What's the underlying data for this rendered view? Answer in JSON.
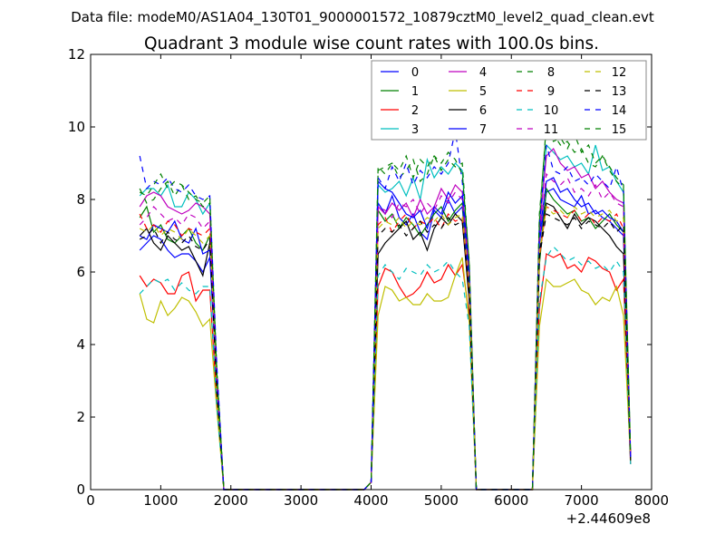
{
  "chart_data": {
    "type": "line",
    "suptitle": "Data file: modeM0/AS1A04_130T01_9000001572_10879cztM0_level2_quad_clean.evt",
    "title": "Quadrant 3 module wise count rates with 100.0s bins.",
    "xlabel": "",
    "ylabel": "",
    "x_offset_label": "+2.44609e8",
    "xlim": [
      0,
      8000
    ],
    "ylim": [
      0,
      12
    ],
    "xticks": [
      0,
      1000,
      2000,
      3000,
      4000,
      5000,
      6000,
      7000,
      8000
    ],
    "yticks": [
      0,
      2,
      4,
      6,
      8,
      10,
      12
    ],
    "grid": false,
    "legend_placement": "top-right",
    "legend_columns": 4,
    "x": [
      700,
      800,
      900,
      1000,
      1100,
      1200,
      1300,
      1400,
      1500,
      1600,
      1700,
      1800,
      1900,
      2000,
      2100,
      2200,
      2300,
      2400,
      2500,
      2600,
      2700,
      2800,
      2900,
      3000,
      3100,
      3200,
      3300,
      3400,
      3500,
      3600,
      3700,
      3800,
      3900,
      4000,
      4100,
      4200,
      4300,
      4400,
      4500,
      4600,
      4700,
      4800,
      4900,
      5000,
      5100,
      5200,
      5300,
      5400,
      5500,
      5600,
      5700,
      5800,
      5900,
      6000,
      6100,
      6200,
      6300,
      6400,
      6500,
      6600,
      6700,
      6800,
      6900,
      7000,
      7100,
      7200,
      7300,
      7400,
      7500,
      7600,
      7700
    ],
    "series": [
      {
        "name": "0",
        "color": "#0000ff",
        "dashed": false,
        "values": [
          6.6,
          6.8,
          7.0,
          6.9,
          6.6,
          6.4,
          6.5,
          6.5,
          6.3,
          6.0,
          6.4,
          3.0,
          0,
          0,
          0,
          0,
          0,
          0,
          0,
          0,
          0,
          0,
          0,
          0,
          0,
          0,
          0,
          0,
          0,
          0,
          0,
          0,
          0,
          0.2,
          7.9,
          7.6,
          8.1,
          7.5,
          7.3,
          7.6,
          7.1,
          6.9,
          7.7,
          7.5,
          8.0,
          7.6,
          7.8,
          5.5,
          0,
          0,
          0,
          0,
          0,
          0,
          0,
          0,
          0,
          6.8,
          8.2,
          8.3,
          8.0,
          7.9,
          7.8,
          8.1,
          7.6,
          7.7,
          7.5,
          7.4,
          7.2,
          7.0,
          0.9
        ]
      },
      {
        "name": "1",
        "color": "#008000",
        "dashed": false,
        "values": [
          7.5,
          7.8,
          7.1,
          7.3,
          6.9,
          6.8,
          7.0,
          7.2,
          6.8,
          6.6,
          7.0,
          2.8,
          0,
          0,
          0,
          0,
          0,
          0,
          0,
          0,
          0,
          0,
          0,
          0,
          0,
          0,
          0,
          0,
          0,
          0,
          0,
          0,
          0,
          0.2,
          7.7,
          7.4,
          7.6,
          7.2,
          7.5,
          7.3,
          7.0,
          7.3,
          7.6,
          7.8,
          7.4,
          7.7,
          7.9,
          5.8,
          0,
          0,
          0,
          0,
          0,
          0,
          0,
          0,
          0,
          6.2,
          8.3,
          8.0,
          7.8,
          7.6,
          7.7,
          7.4,
          7.5,
          7.2,
          7.4,
          7.6,
          7.3,
          7.1,
          0.8
        ]
      },
      {
        "name": "2",
        "color": "#ff0000",
        "dashed": false,
        "values": [
          5.9,
          5.6,
          5.8,
          5.7,
          5.4,
          5.4,
          5.9,
          6.0,
          5.2,
          5.5,
          5.5,
          2.4,
          0,
          0,
          0,
          0,
          0,
          0,
          0,
          0,
          0,
          0,
          0,
          0,
          0,
          0,
          0,
          0,
          0,
          0,
          0,
          0,
          0,
          0.2,
          5.6,
          6.1,
          6.0,
          5.6,
          5.3,
          5.4,
          5.6,
          6.0,
          5.7,
          5.8,
          6.2,
          5.9,
          6.2,
          4.8,
          0,
          0,
          0,
          0,
          0,
          0,
          0,
          0,
          0,
          5.0,
          6.5,
          6.4,
          6.5,
          6.1,
          6.2,
          6.0,
          6.4,
          6.3,
          6.1,
          6.0,
          5.5,
          5.8,
          0.7
        ]
      },
      {
        "name": "3",
        "color": "#00bfbf",
        "dashed": false,
        "values": [
          8.1,
          8.3,
          8.3,
          8.1,
          8.4,
          7.8,
          7.8,
          8.2,
          8.0,
          7.6,
          7.9,
          3.2,
          0,
          0,
          0,
          0,
          0,
          0,
          0,
          0,
          0,
          0,
          0,
          0,
          0,
          0,
          0,
          0,
          0,
          0,
          0,
          0,
          0,
          0.2,
          8.4,
          8.2,
          8.3,
          8.5,
          8.1,
          8.6,
          8.0,
          9.1,
          8.6,
          8.9,
          8.7,
          9.0,
          8.8,
          6.0,
          0,
          0,
          0,
          0,
          0,
          0,
          0,
          0,
          0,
          7.0,
          9.5,
          9.3,
          9.1,
          9.2,
          8.9,
          9.0,
          8.7,
          9.5,
          8.8,
          8.9,
          8.5,
          8.2,
          0.7
        ]
      },
      {
        "name": "4",
        "color": "#bf00bf",
        "dashed": false,
        "values": [
          7.8,
          8.1,
          8.2,
          8.1,
          7.8,
          7.7,
          7.6,
          7.7,
          7.9,
          7.8,
          7.6,
          3.1,
          0,
          0,
          0,
          0,
          0,
          0,
          0,
          0,
          0,
          0,
          0,
          0,
          0,
          0,
          0,
          0,
          0,
          0,
          0,
          0,
          0,
          0.2,
          7.8,
          7.6,
          7.9,
          7.7,
          7.9,
          7.5,
          8.0,
          7.6,
          7.8,
          8.3,
          8.0,
          8.4,
          8.2,
          6.1,
          0,
          0,
          0,
          0,
          0,
          0,
          0,
          0,
          0,
          7.2,
          9.2,
          9.4,
          9.0,
          8.8,
          8.9,
          8.6,
          8.7,
          8.3,
          8.5,
          8.2,
          8.0,
          7.9,
          0.9
        ]
      },
      {
        "name": "5",
        "color": "#bfbf00",
        "dashed": false,
        "values": [
          5.4,
          4.7,
          4.6,
          5.2,
          4.8,
          5.0,
          5.3,
          5.2,
          4.9,
          4.5,
          4.7,
          2.2,
          0,
          0,
          0,
          0,
          0,
          0,
          0,
          0,
          0,
          0,
          0,
          0,
          0,
          0,
          0,
          0,
          0,
          0,
          0,
          0,
          0,
          0.2,
          4.8,
          5.6,
          5.5,
          5.2,
          5.3,
          5.1,
          5.1,
          5.4,
          5.2,
          5.2,
          5.3,
          5.9,
          6.4,
          4.6,
          0,
          0,
          0,
          0,
          0,
          0,
          0,
          0,
          0,
          4.5,
          5.8,
          5.6,
          5.6,
          5.7,
          5.8,
          5.5,
          5.4,
          5.1,
          5.3,
          5.2,
          5.6,
          4.8,
          0.8
        ]
      },
      {
        "name": "6",
        "color": "#000000",
        "dashed": false,
        "values": [
          7.0,
          7.2,
          6.8,
          6.6,
          7.0,
          6.8,
          6.6,
          6.7,
          6.3,
          5.9,
          6.8,
          2.9,
          0,
          0,
          0,
          0,
          0,
          0,
          0,
          0,
          0,
          0,
          0,
          0,
          0,
          0,
          0,
          0,
          0,
          0,
          0,
          0,
          0,
          0.2,
          6.5,
          6.8,
          7.0,
          7.2,
          7.4,
          6.9,
          7.1,
          6.6,
          7.2,
          7.5,
          7.3,
          7.6,
          7.4,
          5.2,
          0,
          0,
          0,
          0,
          0,
          0,
          0,
          0,
          0,
          6.5,
          7.9,
          7.8,
          7.5,
          7.2,
          7.6,
          7.3,
          7.5,
          7.4,
          7.2,
          7.0,
          6.7,
          6.5,
          0.8
        ]
      },
      {
        "name": "7",
        "color": "#0000ff",
        "dashed": false,
        "values": [
          7.0,
          6.9,
          7.3,
          7.2,
          7.1,
          7.4,
          6.9,
          6.8,
          7.2,
          6.5,
          6.6,
          2.8,
          0,
          0,
          0,
          0,
          0,
          0,
          0,
          0,
          0,
          0,
          0,
          0,
          0,
          0,
          0,
          0,
          0,
          0,
          0,
          0,
          0,
          0.2,
          8.5,
          8.3,
          8.2,
          7.9,
          7.6,
          7.5,
          7.7,
          7.2,
          7.8,
          7.6,
          8.2,
          7.9,
          8.1,
          5.8,
          0,
          0,
          0,
          0,
          0,
          0,
          0,
          0,
          0,
          7.0,
          8.5,
          8.6,
          8.2,
          8.3,
          8.0,
          7.8,
          7.9,
          7.6,
          7.7,
          7.5,
          7.4,
          7.1,
          0.9
        ]
      },
      {
        "name": "8",
        "color": "#008000",
        "dashed": true,
        "values": [
          8.3,
          7.9,
          8.0,
          8.3,
          8.5,
          8.1,
          8.4,
          8.0,
          8.1,
          7.8,
          7.9,
          3.3,
          0,
          0,
          0,
          0,
          0,
          0,
          0,
          0,
          0,
          0,
          0,
          0,
          0,
          0,
          0,
          0,
          0,
          0,
          0,
          0,
          0,
          0.2,
          8.8,
          8.9,
          9.0,
          8.6,
          8.8,
          9.1,
          8.5,
          8.7,
          9.2,
          8.8,
          9.1,
          8.9,
          9.0,
          6.2,
          0,
          0,
          0,
          0,
          0,
          0,
          0,
          0,
          0,
          7.4,
          10.1,
          9.8,
          9.5,
          9.6,
          9.3,
          9.4,
          9.0,
          8.9,
          9.2,
          8.8,
          8.5,
          8.3,
          1.0
        ]
      },
      {
        "name": "9",
        "color": "#ff0000",
        "dashed": true,
        "values": [
          7.6,
          7.2,
          7.3,
          7.1,
          7.4,
          7.3,
          7.0,
          7.2,
          7.1,
          7.0,
          7.2,
          2.9,
          0,
          0,
          0,
          0,
          0,
          0,
          0,
          0,
          0,
          0,
          0,
          0,
          0,
          0,
          0,
          0,
          0,
          0,
          0,
          0,
          0,
          0.2,
          7.3,
          7.5,
          7.1,
          7.4,
          7.6,
          7.2,
          7.4,
          7.3,
          7.5,
          7.2,
          7.6,
          7.4,
          7.5,
          5.5,
          0,
          0,
          0,
          0,
          0,
          0,
          0,
          0,
          0,
          6.4,
          7.8,
          7.7,
          7.6,
          7.5,
          7.7,
          7.4,
          7.6,
          7.3,
          7.5,
          7.4,
          7.6,
          7.2,
          0.9
        ]
      },
      {
        "name": "10",
        "color": "#00bfbf",
        "dashed": true,
        "values": [
          5.4,
          5.6,
          5.8,
          5.7,
          5.8,
          5.5,
          5.7,
          5.5,
          5.4,
          5.6,
          5.6,
          2.3,
          0,
          0,
          0,
          0,
          0,
          0,
          0,
          0,
          0,
          0,
          0,
          0,
          0,
          0,
          0,
          0,
          0,
          0,
          0,
          0,
          0,
          0.2,
          5.9,
          6.2,
          6.0,
          5.8,
          6.1,
          6.0,
          5.9,
          6.2,
          6.0,
          6.1,
          6.3,
          6.0,
          5.8,
          4.5,
          0,
          0,
          0,
          0,
          0,
          0,
          0,
          0,
          0,
          5.2,
          6.4,
          6.7,
          6.5,
          6.3,
          6.4,
          6.2,
          6.3,
          6.1,
          6.2,
          6.0,
          6.3,
          6.0,
          0.8
        ]
      },
      {
        "name": "11",
        "color": "#bf00bf",
        "dashed": true,
        "values": [
          7.3,
          7.5,
          7.8,
          7.6,
          7.4,
          7.5,
          7.3,
          7.6,
          7.5,
          7.2,
          7.4,
          3.0,
          0,
          0,
          0,
          0,
          0,
          0,
          0,
          0,
          0,
          0,
          0,
          0,
          0,
          0,
          0,
          0,
          0,
          0,
          0,
          0,
          0,
          0.2,
          7.8,
          7.7,
          7.5,
          7.9,
          7.8,
          8.0,
          7.6,
          7.9,
          7.7,
          8.1,
          7.9,
          8.2,
          8.0,
          5.9,
          0,
          0,
          0,
          0,
          0,
          0,
          0,
          0,
          0,
          6.9,
          8.7,
          8.5,
          8.4,
          8.6,
          8.2,
          8.3,
          8.1,
          8.4,
          8.0,
          8.2,
          7.9,
          7.8,
          0.9
        ]
      },
      {
        "name": "12",
        "color": "#bfbf00",
        "dashed": true,
        "values": [
          7.2,
          7.1,
          7.3,
          7.0,
          7.2,
          7.1,
          6.9,
          7.2,
          7.0,
          6.8,
          7.0,
          2.8,
          0,
          0,
          0,
          0,
          0,
          0,
          0,
          0,
          0,
          0,
          0,
          0,
          0,
          0,
          0,
          0,
          0,
          0,
          0,
          0,
          0,
          0.2,
          7.2,
          7.4,
          7.3,
          7.5,
          7.2,
          7.4,
          7.3,
          7.5,
          7.4,
          7.6,
          7.3,
          7.5,
          7.6,
          5.6,
          0,
          0,
          0,
          0,
          0,
          0,
          0,
          0,
          0,
          6.5,
          7.8,
          7.6,
          7.7,
          7.5,
          7.8,
          7.6,
          7.7,
          7.5,
          7.6,
          7.7,
          7.4,
          7.5,
          0.8
        ]
      },
      {
        "name": "13",
        "color": "#000000",
        "dashed": true,
        "values": [
          6.9,
          7.0,
          7.2,
          6.8,
          7.1,
          6.9,
          6.8,
          7.0,
          6.7,
          6.6,
          6.9,
          2.7,
          0,
          0,
          0,
          0,
          0,
          0,
          0,
          0,
          0,
          0,
          0,
          0,
          0,
          0,
          0,
          0,
          0,
          0,
          0,
          0,
          0,
          0.2,
          7.0,
          7.2,
          7.1,
          7.3,
          7.0,
          7.2,
          7.4,
          7.1,
          7.3,
          7.2,
          7.5,
          7.3,
          7.4,
          5.4,
          0,
          0,
          0,
          0,
          0,
          0,
          0,
          0,
          0,
          6.4,
          7.6,
          7.5,
          7.4,
          7.3,
          7.5,
          7.2,
          7.4,
          7.3,
          7.2,
          7.4,
          7.1,
          7.3,
          0.8
        ]
      },
      {
        "name": "14",
        "color": "#0000ff",
        "dashed": true,
        "values": [
          9.2,
          8.3,
          8.5,
          8.4,
          8.6,
          8.3,
          8.2,
          8.4,
          8.1,
          8.0,
          8.1,
          3.4,
          0,
          0,
          0,
          0,
          0,
          0,
          0,
          0,
          0,
          0,
          0,
          0,
          0,
          0,
          0,
          0,
          0,
          0,
          0,
          0,
          0,
          0.2,
          8.6,
          8.3,
          8.9,
          8.5,
          9.0,
          8.4,
          8.8,
          8.6,
          8.9,
          8.7,
          9.0,
          9.9,
          8.5,
          6.1,
          0,
          0,
          0,
          0,
          0,
          0,
          0,
          0,
          0,
          7.3,
          9.5,
          8.8,
          8.7,
          8.9,
          8.5,
          8.6,
          8.4,
          8.7,
          8.5,
          8.3,
          8.9,
          8.2,
          0.9
        ]
      },
      {
        "name": "15",
        "color": "#008000",
        "dashed": true,
        "values": [
          8.2,
          8.1,
          8.4,
          8.7,
          8.3,
          8.5,
          8.4,
          8.2,
          8.0,
          7.9,
          8.1,
          3.2,
          0,
          0,
          0,
          0,
          0,
          0,
          0,
          0,
          0,
          0,
          0,
          0,
          0,
          0,
          0,
          0,
          0,
          0,
          0,
          0,
          0,
          0.2,
          8.9,
          8.7,
          9.0,
          8.8,
          9.2,
          8.6,
          9.1,
          8.9,
          9.2,
          9.0,
          9.3,
          9.1,
          8.7,
          6.3,
          0,
          0,
          0,
          0,
          0,
          0,
          0,
          0,
          0,
          7.6,
          9.9,
          9.6,
          9.7,
          9.4,
          9.8,
          9.3,
          9.5,
          9.0,
          9.2,
          8.9,
          8.6,
          8.4,
          1.0
        ]
      }
    ]
  }
}
